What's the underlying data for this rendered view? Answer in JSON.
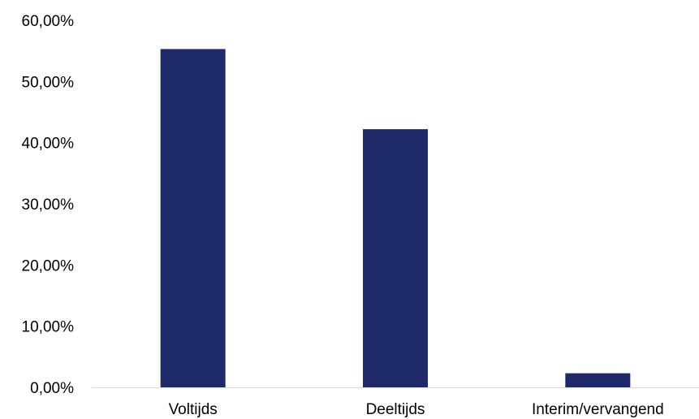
{
  "chart_data": {
    "type": "bar",
    "categories": [
      "Voltijds",
      "Deeltijds",
      "Interim/vervangend"
    ],
    "series": [
      {
        "values": [
          55.3,
          42.2,
          2.3
        ]
      }
    ],
    "ylim": [
      0,
      60
    ],
    "yticks": [
      0,
      10,
      20,
      30,
      40,
      50,
      60
    ],
    "ytick_labels": [
      "0,00%",
      "10,00%",
      "20,00%",
      "30,00%",
      "40,00%",
      "50,00%",
      "60,00%"
    ],
    "title": "",
    "xlabel": "",
    "ylabel": "",
    "grid": false,
    "legend": "none",
    "bar_color": "#1f2a6b",
    "axis_color": "#d9d9d9"
  }
}
